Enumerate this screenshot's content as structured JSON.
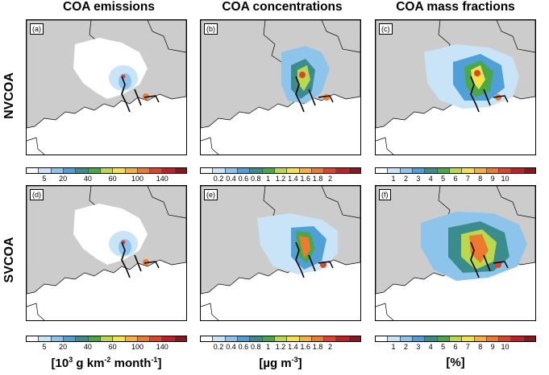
{
  "columns": [
    {
      "title": "COA emissions"
    },
    {
      "title": "COA concentrations"
    },
    {
      "title": "COA mass fractions"
    }
  ],
  "rows": [
    {
      "title": "NVCOA"
    },
    {
      "title": "SVCOA"
    }
  ],
  "panels": [
    {
      "tag": "(a)"
    },
    {
      "tag": "(b)"
    },
    {
      "tag": "(c)"
    },
    {
      "tag": "(d)"
    },
    {
      "tag": "(e)"
    },
    {
      "tag": "(f)"
    }
  ],
  "colorbars": {
    "emissions": {
      "ticks": [
        "5",
        "20",
        "40",
        "60",
        "100",
        "140"
      ],
      "colors": [
        "#ffffff",
        "#c9e4f7",
        "#8cc4ec",
        "#4f9fd8",
        "#3b8c8c",
        "#49a84a",
        "#b9d84a",
        "#f3e24b",
        "#f4b13c",
        "#ee7a30",
        "#e0432a",
        "#c11f25",
        "#8c1520"
      ]
    },
    "concentrations": {
      "ticks": [
        "0.2",
        "0.4",
        "0.6",
        "0.8",
        "1",
        "1.2",
        "1.4",
        "1.6",
        "1.8",
        "2"
      ],
      "colors": [
        "#ffffff",
        "#c9e4f7",
        "#8cc4ec",
        "#4f9fd8",
        "#3b8c8c",
        "#49a84a",
        "#b9d84a",
        "#f3e24b",
        "#f4b13c",
        "#ee7a30",
        "#e0432a",
        "#c11f25",
        "#8c1520"
      ]
    },
    "fractions": {
      "ticks": [
        "1",
        "2",
        "3",
        "4",
        "5",
        "6",
        "7",
        "8",
        "9",
        "10"
      ],
      "colors": [
        "#ffffff",
        "#c9e4f7",
        "#8cc4ec",
        "#4f9fd8",
        "#3b8c8c",
        "#49a84a",
        "#b9d84a",
        "#f3e24b",
        "#f4b13c",
        "#ee7a30",
        "#e0432a",
        "#c11f25",
        "#8c1520"
      ]
    }
  },
  "units": {
    "emissions": {
      "pre": "[10",
      "sup1": "3",
      "mid": " g km",
      "sup2": "-2",
      "mid2": " month",
      "sup3": "-1",
      "post": "]"
    },
    "concentrations": {
      "pre": "[µg m",
      "sup1": "-3",
      "post": "]"
    },
    "fractions": {
      "text": "[%]"
    }
  }
}
